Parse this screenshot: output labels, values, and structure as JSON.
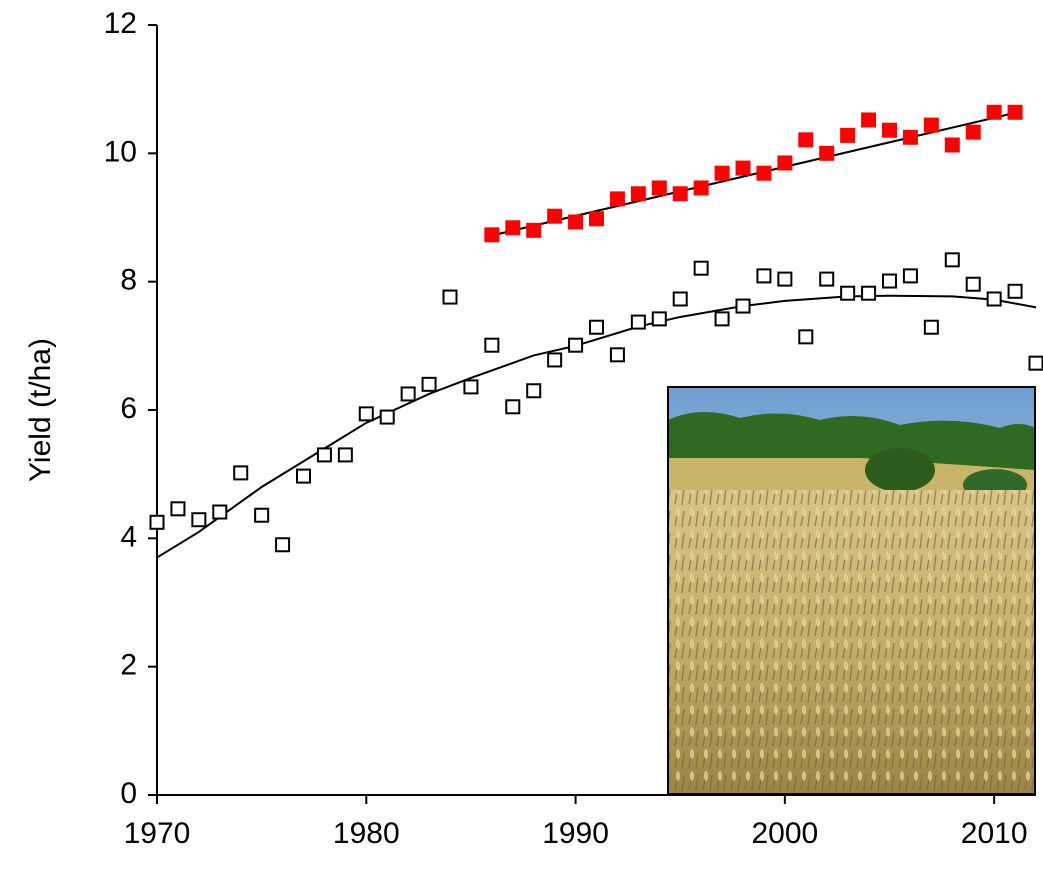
{
  "chart_data": {
    "type": "scatter",
    "y_label": "Yield (t/ha)",
    "xlim": [
      1970,
      2012
    ],
    "xticks": [
      1970,
      1980,
      1990,
      2000,
      2010
    ],
    "ylim": [
      0,
      12
    ],
    "yticks": [
      0,
      2,
      4,
      6,
      8,
      10,
      12
    ],
    "grid": false,
    "series": [
      {
        "marker": "open-square",
        "color": "#000000",
        "x": [
          1970,
          1971,
          1972,
          1973,
          1974,
          1975,
          1976,
          1977,
          1978,
          1979,
          1980,
          1981,
          1982,
          1983,
          1984,
          1985,
          1986,
          1987,
          1988,
          1989,
          1990,
          1991,
          1992,
          1993,
          1994,
          1995,
          1996,
          1997,
          1998,
          1999,
          2000,
          2001,
          2002,
          2003,
          2004,
          2005,
          2006,
          2007,
          2008,
          2009,
          2010,
          2011,
          2012
        ],
        "values": [
          4.25,
          4.46,
          4.29,
          4.41,
          5.02,
          4.36,
          3.9,
          4.97,
          5.3,
          5.3,
          5.94,
          5.89,
          6.25,
          6.4,
          7.76,
          6.36,
          7.01,
          6.05,
          6.3,
          6.78,
          7.01,
          7.29,
          6.86,
          7.37,
          7.42,
          7.73,
          8.21,
          7.42,
          7.62,
          8.09,
          8.04,
          7.14,
          8.04,
          7.82,
          7.82,
          8.01,
          8.09,
          7.29,
          8.34,
          7.96,
          7.73,
          7.85,
          6.73
        ]
      },
      {
        "marker": "filled-square",
        "color": "#ff0000",
        "x": [
          1986,
          1987,
          1988,
          1989,
          1990,
          1991,
          1992,
          1993,
          1994,
          1995,
          1996,
          1997,
          1998,
          1999,
          2000,
          2001,
          2002,
          2003,
          2004,
          2005,
          2006,
          2007,
          2008,
          2009,
          2010,
          2011
        ],
        "values": [
          8.73,
          8.84,
          8.8,
          9.02,
          8.93,
          8.98,
          9.29,
          9.37,
          9.46,
          9.37,
          9.46,
          9.69,
          9.77,
          9.69,
          9.85,
          10.21,
          10.0,
          10.28,
          10.52,
          10.36,
          10.25,
          10.44,
          10.13,
          10.33,
          10.64,
          10.64
        ]
      }
    ],
    "trends": [
      {
        "color": "#000000",
        "x": [
          1970,
          1972,
          1975,
          1978,
          1980,
          1983,
          1985,
          1988,
          1990,
          1993,
          1995,
          1998,
          2000,
          2003,
          2005,
          2008,
          2010,
          2012
        ],
        "values": [
          3.7,
          4.1,
          4.8,
          5.4,
          5.8,
          6.25,
          6.5,
          6.85,
          7.0,
          7.3,
          7.45,
          7.62,
          7.7,
          7.77,
          7.78,
          7.77,
          7.72,
          7.6
        ]
      },
      {
        "color": "#000000",
        "x": [
          1986,
          2011
        ],
        "values": [
          8.72,
          10.63
        ]
      }
    ]
  }
}
